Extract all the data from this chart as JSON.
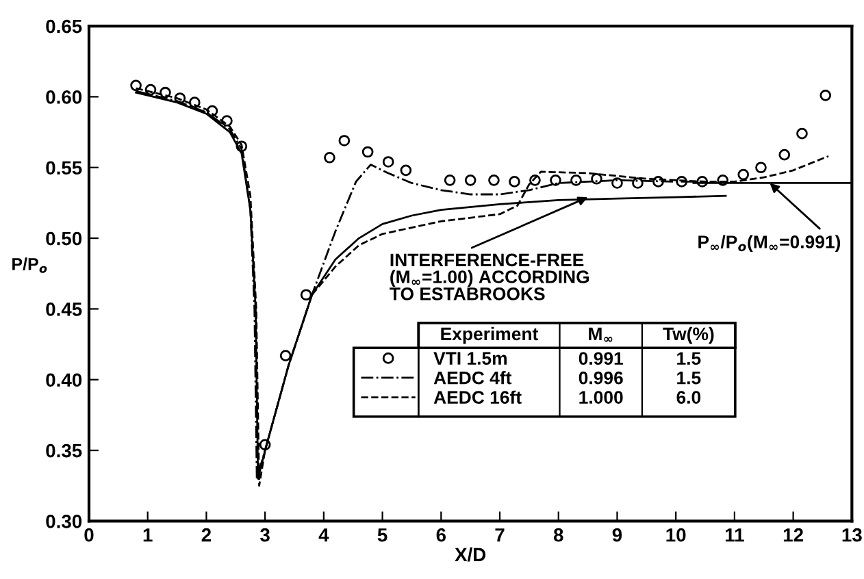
{
  "chart_data": {
    "type": "line",
    "xlabel": "X/D",
    "ylabel": "P/P$_{o}$",
    "xlim": [
      0,
      13
    ],
    "xticks": [
      0,
      1,
      2,
      3,
      4,
      5,
      6,
      7,
      8,
      9,
      10,
      11,
      12,
      13
    ],
    "ylim": [
      0.3,
      0.65
    ],
    "yticks": [
      {
        "value": 0.3,
        "label": "0.30"
      },
      {
        "value": 0.35,
        "label": "0.35"
      },
      {
        "value": 0.4,
        "label": "0.40"
      },
      {
        "value": 0.45,
        "label": "0.45"
      },
      {
        "value": 0.5,
        "label": "0.50"
      },
      {
        "value": 0.55,
        "label": "0.55"
      },
      {
        "value": 0.6,
        "label": "0.60"
      },
      {
        "value": 0.65,
        "label": "0.65"
      }
    ],
    "grid": false,
    "legend": "right",
    "series": [
      {
        "name": "VTI 1.5m",
        "type": "scatter",
        "marker": "circle",
        "color": "#000000",
        "x": [
          0.8,
          1.05,
          1.3,
          1.55,
          1.8,
          2.1,
          2.35,
          2.6,
          3.0,
          3.35,
          3.7,
          4.1,
          4.35,
          4.75,
          5.1,
          5.4,
          6.15,
          6.5,
          6.9,
          7.25,
          7.6,
          7.95,
          8.3,
          8.65,
          9.0,
          9.35,
          9.7,
          10.1,
          10.45,
          10.8,
          11.15,
          11.45,
          11.85,
          12.15,
          12.55
        ],
        "values": [
          0.608,
          0.605,
          0.603,
          0.599,
          0.596,
          0.59,
          0.583,
          0.565,
          0.354,
          0.417,
          0.46,
          0.557,
          0.569,
          0.561,
          0.554,
          0.548,
          0.541,
          0.541,
          0.541,
          0.54,
          0.541,
          0.541,
          0.541,
          0.542,
          0.539,
          0.539,
          0.54,
          0.54,
          0.54,
          0.541,
          0.545,
          0.55,
          0.559,
          0.574,
          0.601
        ]
      },
      {
        "name": "AEDC 4ft",
        "line_style": "dashdot",
        "color": "#000000",
        "x": [
          0.8,
          1.5,
          2.0,
          2.4,
          2.6,
          2.75,
          2.82,
          2.86,
          3.0,
          3.4,
          3.8,
          4.2,
          4.55,
          4.8,
          5.1,
          5.5,
          6.0,
          6.5,
          7.0,
          7.5,
          8.0,
          9.0,
          10.0,
          10.5
        ],
        "values": [
          0.604,
          0.597,
          0.589,
          0.577,
          0.563,
          0.52,
          0.45,
          0.33,
          0.35,
          0.41,
          0.46,
          0.505,
          0.54,
          0.552,
          0.546,
          0.539,
          0.534,
          0.531,
          0.531,
          0.534,
          0.539,
          0.541,
          0.54,
          0.54
        ]
      },
      {
        "name": "AEDC 16ft",
        "line_style": "dashed",
        "color": "#000000",
        "x": [
          0.8,
          1.5,
          2.0,
          2.4,
          2.6,
          2.75,
          2.85,
          2.9,
          3.0,
          3.4,
          3.8,
          4.2,
          4.6,
          5.0,
          6.0,
          7.0,
          7.3,
          7.5,
          7.7,
          8.5,
          9.5,
          10.5,
          11.0,
          11.5,
          12.0,
          12.6
        ],
        "values": [
          0.606,
          0.599,
          0.591,
          0.579,
          0.566,
          0.53,
          0.45,
          0.325,
          0.35,
          0.41,
          0.46,
          0.48,
          0.495,
          0.503,
          0.512,
          0.517,
          0.523,
          0.538,
          0.547,
          0.546,
          0.542,
          0.54,
          0.54,
          0.543,
          0.548,
          0.558
        ]
      },
      {
        "line_style": "solid",
        "color": "#000000",
        "x": [
          0.8,
          1.5,
          2.0,
          2.4,
          2.6,
          2.75,
          2.84,
          2.88,
          3.0,
          3.4,
          3.8,
          4.2,
          4.6,
          5.0,
          5.5,
          6.0,
          7.0,
          8.0,
          9.0,
          10.0,
          10.85
        ],
        "values": [
          0.603,
          0.596,
          0.588,
          0.575,
          0.56,
          0.52,
          0.45,
          0.33,
          0.35,
          0.41,
          0.46,
          0.485,
          0.5,
          0.51,
          0.516,
          0.52,
          0.524,
          0.527,
          0.528,
          0.529,
          0.53
        ]
      },
      {
        "line_style": "solid",
        "color": "#000000",
        "x": [
          10.3,
          13.0
        ],
        "values": [
          0.539,
          0.539
        ]
      }
    ],
    "annotations": [
      {
        "text": "INTERFERENCE-FREE\n(M$_{∞}$=1.00) ACCORDING\nTO ESTABROOKS",
        "x": 8.5,
        "y": 0.529
      },
      {
        "text": "P$_{∞}$/P$_{o}$(M$_{∞}$=0.991)",
        "x": 11.6,
        "y": 0.539
      },
      "Experiment",
      "M$_{∞}$",
      "Tw(%)",
      "0.991",
      "1.5",
      "0.996",
      "1.5",
      "1.000",
      "6.0"
    ]
  }
}
